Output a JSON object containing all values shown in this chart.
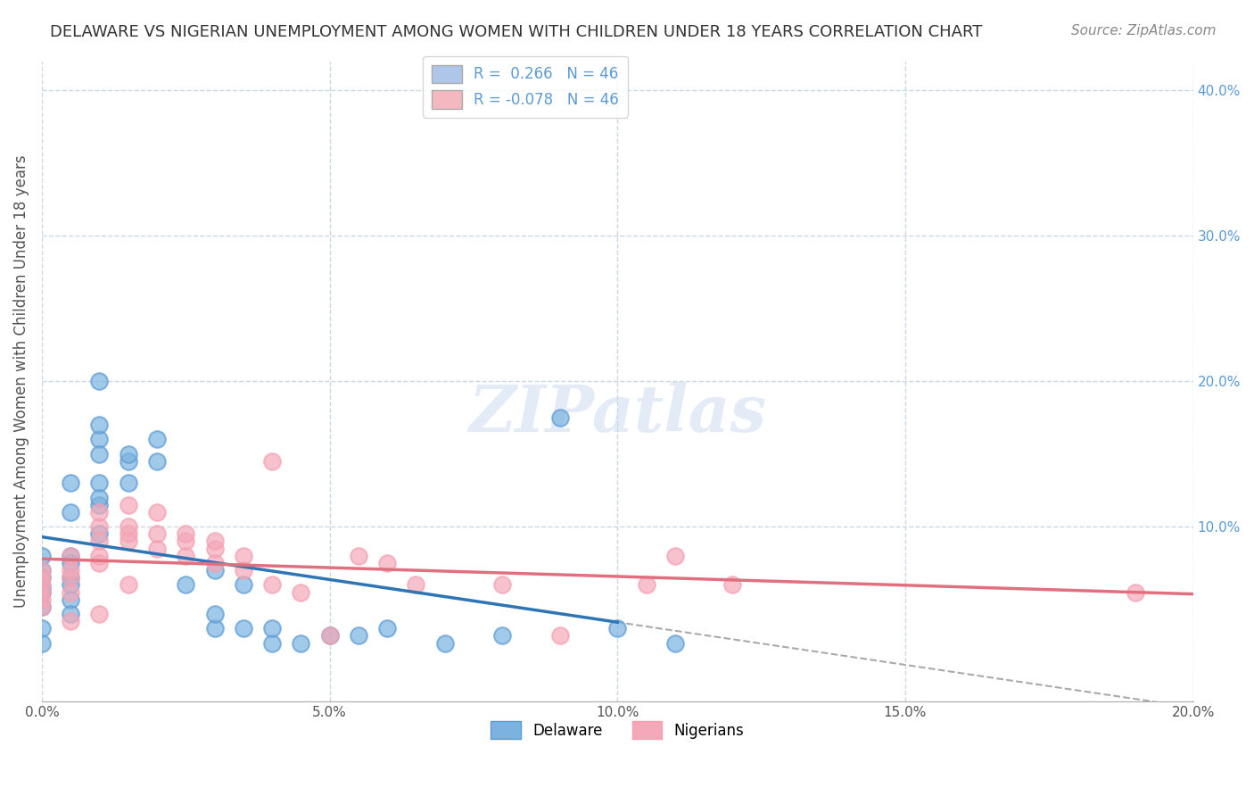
{
  "title": "DELAWARE VS NIGERIAN UNEMPLOYMENT AMONG WOMEN WITH CHILDREN UNDER 18 YEARS CORRELATION CHART",
  "source": "Source: ZipAtlas.com",
  "ylabel": "Unemployment Among Women with Children Under 18 years",
  "xlabel": "",
  "xlim": [
    0.0,
    0.2
  ],
  "ylim": [
    -0.02,
    0.42
  ],
  "xticks": [
    0.0,
    0.05,
    0.1,
    0.15,
    0.2
  ],
  "yticks_right": [
    0.1,
    0.2,
    0.3,
    0.4
  ],
  "ytick_labels_right": [
    "10.0%",
    "20.0%",
    "30.0%",
    "40.0%"
  ],
  "xtick_labels": [
    "0.0%",
    "5.0%",
    "10.0%",
    "15.0%",
    "20.0%"
  ],
  "legend_items": [
    {
      "label": "R =  0.266   N = 46",
      "color": "#aec6e8"
    },
    {
      "label": "R = -0.078   N = 46",
      "color": "#f4b8c1"
    }
  ],
  "delaware_color": "#5b9bd5",
  "nigerian_color": "#f4a0b0",
  "delaware_scatter_color": "#7ab3e0",
  "nigerian_scatter_color": "#f4a8b8",
  "regression_delaware_color": "#2e75b6",
  "regression_nigerian_color": "#e07080",
  "dashed_line_color": "#aaaaaa",
  "background_color": "#ffffff",
  "grid_color": "#c8d8e8",
  "watermark": "ZIPatlas",
  "watermark_color": "#c8d8f0",
  "delaware_points": [
    [
      0.0,
      0.065
    ],
    [
      0.0,
      0.058
    ],
    [
      0.0,
      0.07
    ],
    [
      0.0,
      0.055
    ],
    [
      0.005,
      0.08
    ],
    [
      0.005,
      0.075
    ],
    [
      0.005,
      0.065
    ],
    [
      0.005,
      0.06
    ],
    [
      0.01,
      0.16
    ],
    [
      0.01,
      0.13
    ],
    [
      0.01,
      0.15
    ],
    [
      0.01,
      0.115
    ],
    [
      0.01,
      0.17
    ],
    [
      0.01,
      0.2
    ],
    [
      0.015,
      0.145
    ],
    [
      0.015,
      0.13
    ],
    [
      0.015,
      0.15
    ],
    [
      0.02,
      0.145
    ],
    [
      0.02,
      0.16
    ],
    [
      0.025,
      0.06
    ],
    [
      0.03,
      0.03
    ],
    [
      0.03,
      0.04
    ],
    [
      0.03,
      0.07
    ],
    [
      0.035,
      0.06
    ],
    [
      0.035,
      0.03
    ],
    [
      0.04,
      0.02
    ],
    [
      0.04,
      0.03
    ],
    [
      0.045,
      0.02
    ],
    [
      0.05,
      0.025
    ],
    [
      0.055,
      0.025
    ],
    [
      0.06,
      0.03
    ],
    [
      0.07,
      0.02
    ],
    [
      0.08,
      0.025
    ],
    [
      0.09,
      0.175
    ],
    [
      0.1,
      0.03
    ],
    [
      0.11,
      0.02
    ],
    [
      0.005,
      0.13
    ],
    [
      0.005,
      0.11
    ],
    [
      0.01,
      0.12
    ],
    [
      0.01,
      0.095
    ],
    [
      0.0,
      0.08
    ],
    [
      0.0,
      0.045
    ],
    [
      0.0,
      0.03
    ],
    [
      0.0,
      0.02
    ],
    [
      0.005,
      0.05
    ],
    [
      0.005,
      0.04
    ]
  ],
  "nigerian_points": [
    [
      0.0,
      0.07
    ],
    [
      0.0,
      0.06
    ],
    [
      0.0,
      0.05
    ],
    [
      0.0,
      0.065
    ],
    [
      0.0,
      0.055
    ],
    [
      0.0,
      0.045
    ],
    [
      0.005,
      0.08
    ],
    [
      0.005,
      0.065
    ],
    [
      0.005,
      0.07
    ],
    [
      0.005,
      0.055
    ],
    [
      0.01,
      0.1
    ],
    [
      0.01,
      0.09
    ],
    [
      0.01,
      0.11
    ],
    [
      0.01,
      0.075
    ],
    [
      0.01,
      0.08
    ],
    [
      0.015,
      0.115
    ],
    [
      0.015,
      0.095
    ],
    [
      0.015,
      0.09
    ],
    [
      0.015,
      0.1
    ],
    [
      0.02,
      0.095
    ],
    [
      0.02,
      0.085
    ],
    [
      0.02,
      0.11
    ],
    [
      0.025,
      0.09
    ],
    [
      0.025,
      0.08
    ],
    [
      0.025,
      0.095
    ],
    [
      0.03,
      0.075
    ],
    [
      0.03,
      0.085
    ],
    [
      0.03,
      0.09
    ],
    [
      0.035,
      0.08
    ],
    [
      0.035,
      0.07
    ],
    [
      0.04,
      0.145
    ],
    [
      0.04,
      0.06
    ],
    [
      0.045,
      0.055
    ],
    [
      0.05,
      0.025
    ],
    [
      0.055,
      0.08
    ],
    [
      0.06,
      0.075
    ],
    [
      0.065,
      0.06
    ],
    [
      0.08,
      0.06
    ],
    [
      0.09,
      0.025
    ],
    [
      0.105,
      0.06
    ],
    [
      0.11,
      0.08
    ],
    [
      0.12,
      0.06
    ],
    [
      0.01,
      0.04
    ],
    [
      0.015,
      0.06
    ],
    [
      0.19,
      0.055
    ],
    [
      0.005,
      0.035
    ]
  ],
  "title_fontsize": 13,
  "axis_label_fontsize": 12,
  "tick_fontsize": 11,
  "legend_fontsize": 12,
  "source_fontsize": 11
}
